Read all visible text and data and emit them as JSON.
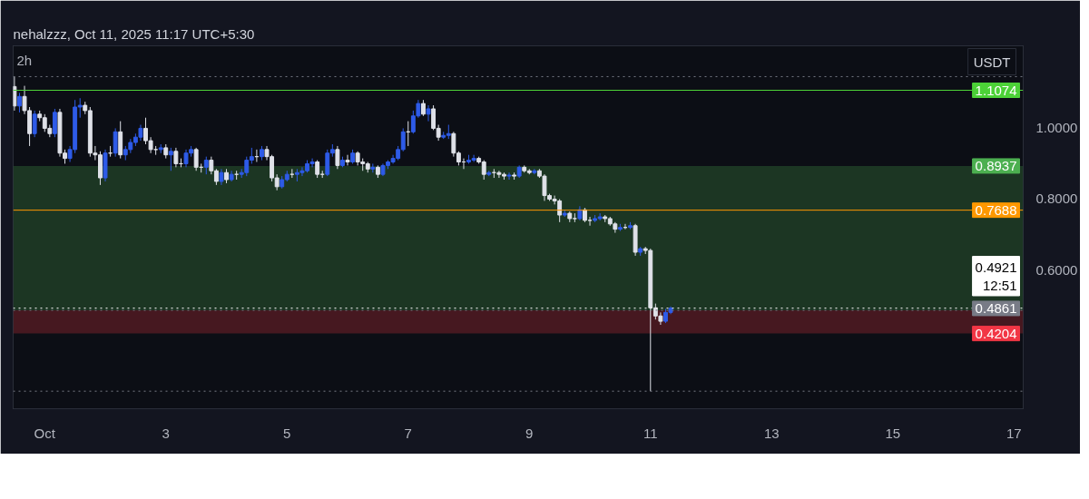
{
  "chart_data": {
    "type": "candlestick",
    "title": "nehalzzz, Oct 11, 2025 11:17 UTC+5:30",
    "subtitle": "2h",
    "ylabel": "USDT",
    "colors": [
      "#dfe1e8",
      "#2e5be8",
      "#dfe1e8",
      "#dfe1e8",
      "#2e5be8",
      "#dfe1e8",
      "#dfe1e8",
      "#dfe1e8",
      "#2e5be8",
      "#dfe1e8",
      "#dfe1e8",
      "#2e5be8",
      "#2e5be8",
      "#2e5be8",
      "#dfe1e8",
      "#dfe1e8",
      "#dfe1e8",
      "#dfe1e8",
      "#2e5be8",
      "#dfe1e8",
      "#2e5be8",
      "#dfe1e8",
      "#2e5be8",
      "#2e5be8",
      "#2e5be8",
      "#2e5be8",
      "#dfe1e8",
      "#dfe1e8",
      "#dfe1e8",
      "#2e5be8",
      "#dfe1e8",
      "#2e5be8",
      "#dfe1e8",
      "#dfe1e8",
      "#2e5be8",
      "#2e5be8",
      "#dfe1e8",
      "#dfe1e8",
      "#2e5be8",
      "#dfe1e8",
      "#dfe1e8",
      "#2e5be8",
      "#dfe1e8",
      "#2e5be8",
      "#dfe1e8",
      "#2e5be8",
      "#2e5be8",
      "#2e5be8",
      "#dfe1e8",
      "#2e5be8",
      "#dfe1e8",
      "#dfe1e8",
      "#dfe1e8",
      "#2e5be8",
      "#2e5be8",
      "#dfe1e8",
      "#2e5be8",
      "#2e5be8",
      "#2e5be8",
      "#2e5be8",
      "#dfe1e8",
      "#dfe1e8",
      "#2e5be8",
      "#2e5be8",
      "#dfe1e8",
      "#2e5be8",
      "#dfe1e8",
      "#2e5be8",
      "#dfe1e8",
      "#dfe1e8",
      "#dfe1e8",
      "#2e5be8",
      "#dfe1e8",
      "#2e5be8",
      "#2e5be8",
      "#2e5be8",
      "#2e5be8",
      "#2e5be8",
      "#dfe1e8",
      "#2e5be8",
      "#2e5be8",
      "#dfe1e8",
      "#2e5be8",
      "#dfe1e8",
      "#dfe1e8",
      "#2e5be8",
      "#2e5be8",
      "#dfe1e8",
      "#dfe1e8",
      "#dfe1e8",
      "#2e5be8",
      "#2e5be8",
      "#dfe1e8",
      "#dfe1e8",
      "#2e5be8",
      "#dfe1e8",
      "#dfe1e8",
      "#dfe1e8",
      "#2e5be8",
      "#dfe1e8",
      "#2e5be8",
      "#dfe1e8",
      "#dfe1e8",
      "#2e5be8",
      "#dfe1e8",
      "#dfe1e8",
      "#dfe1e8",
      "#dfe1e8",
      "#dfe1e8",
      "#2e5be8",
      "#dfe1e8",
      "#dfe1e8",
      "#2e5be8",
      "#dfe1e8",
      "#dfe1e8",
      "#2e5be8",
      "#2e5be8",
      "#dfe1e8",
      "#dfe1e8",
      "#dfe1e8",
      "#2e5be8",
      "#dfe1e8",
      "#2e5be8",
      "#dfe1e8",
      "#2e5be8",
      "#dfe1e8",
      "#dfe1e8",
      "#dfe1e8",
      "#dfe1e8",
      "#2e5be8",
      "#2e5be8"
    ],
    "x": [
      "2025-09-30T12:00",
      "2025-09-30T14:00",
      "2025-09-30T16:00",
      "2025-09-30T18:00",
      "2025-09-30T20:00",
      "2025-09-30T22:00",
      "2025-10-01T00:00",
      "2025-10-01T02:00",
      "2025-10-01T04:00",
      "2025-10-01T06:00",
      "2025-10-01T08:00",
      "2025-10-01T10:00",
      "2025-10-01T12:00",
      "2025-10-01T14:00",
      "2025-10-01T16:00",
      "2025-10-01T18:00",
      "2025-10-01T20:00",
      "2025-10-01T22:00",
      "2025-10-02T00:00",
      "2025-10-02T02:00",
      "2025-10-02T04:00",
      "2025-10-02T06:00",
      "2025-10-02T08:00",
      "2025-10-02T10:00",
      "2025-10-02T12:00",
      "2025-10-02T14:00",
      "2025-10-02T16:00",
      "2025-10-02T18:00",
      "2025-10-02T20:00",
      "2025-10-02T22:00",
      "2025-10-03T00:00",
      "2025-10-03T02:00",
      "2025-10-03T04:00",
      "2025-10-03T06:00",
      "2025-10-03T08:00",
      "2025-10-03T10:00",
      "2025-10-03T12:00",
      "2025-10-03T14:00",
      "2025-10-03T16:00",
      "2025-10-03T18:00",
      "2025-10-03T20:00",
      "2025-10-03T22:00",
      "2025-10-04T00:00",
      "2025-10-04T02:00",
      "2025-10-04T04:00",
      "2025-10-04T06:00",
      "2025-10-04T08:00",
      "2025-10-04T10:00",
      "2025-10-04T12:00",
      "2025-10-04T14:00",
      "2025-10-04T16:00",
      "2025-10-04T18:00",
      "2025-10-04T20:00",
      "2025-10-04T22:00",
      "2025-10-05T00:00",
      "2025-10-05T02:00",
      "2025-10-05T04:00",
      "2025-10-05T06:00",
      "2025-10-05T08:00",
      "2025-10-05T10:00",
      "2025-10-05T12:00",
      "2025-10-05T14:00",
      "2025-10-05T16:00",
      "2025-10-05T18:00",
      "2025-10-05T20:00",
      "2025-10-05T22:00",
      "2025-10-06T00:00",
      "2025-10-06T02:00",
      "2025-10-06T04:00",
      "2025-10-06T06:00",
      "2025-10-06T08:00",
      "2025-10-06T10:00",
      "2025-10-06T12:00",
      "2025-10-06T14:00",
      "2025-10-06T16:00",
      "2025-10-06T18:00",
      "2025-10-06T20:00",
      "2025-10-06T22:00",
      "2025-10-07T00:00",
      "2025-10-07T02:00",
      "2025-10-07T04:00",
      "2025-10-07T06:00",
      "2025-10-07T08:00",
      "2025-10-07T10:00",
      "2025-10-07T12:00",
      "2025-10-07T14:00",
      "2025-10-07T16:00",
      "2025-10-07T18:00",
      "2025-10-07T20:00",
      "2025-10-07T22:00",
      "2025-10-08T00:00",
      "2025-10-08T02:00",
      "2025-10-08T04:00",
      "2025-10-08T06:00",
      "2025-10-08T08:00",
      "2025-10-08T10:00",
      "2025-10-08T12:00",
      "2025-10-08T14:00",
      "2025-10-08T16:00",
      "2025-10-08T18:00",
      "2025-10-08T20:00",
      "2025-10-08T22:00",
      "2025-10-09T00:00",
      "2025-10-09T02:00",
      "2025-10-09T04:00",
      "2025-10-09T06:00",
      "2025-10-09T08:00",
      "2025-10-09T10:00",
      "2025-10-09T12:00",
      "2025-10-09T14:00",
      "2025-10-09T16:00",
      "2025-10-09T18:00",
      "2025-10-09T20:00",
      "2025-10-09T22:00",
      "2025-10-10T00:00",
      "2025-10-10T02:00",
      "2025-10-10T04:00",
      "2025-10-10T06:00",
      "2025-10-10T08:00",
      "2025-10-10T10:00",
      "2025-10-10T12:00",
      "2025-10-10T14:00",
      "2025-10-10T16:00",
      "2025-10-10T18:00",
      "2025-10-10T20:00",
      "2025-10-10T22:00",
      "2025-10-11T00:00",
      "2025-10-11T02:00",
      "2025-10-11T04:00",
      "2025-10-11T06:00",
      "2025-10-11T08:00"
    ],
    "ohlc": [
      [
        1.118,
        1.146,
        1.05,
        1.063
      ],
      [
        1.063,
        1.1,
        1.045,
        1.09
      ],
      [
        1.09,
        1.12,
        1.04,
        1.05
      ],
      [
        1.05,
        1.06,
        0.95,
        0.985
      ],
      [
        0.985,
        1.05,
        0.975,
        1.04
      ],
      [
        1.04,
        1.05,
        1.02,
        1.03
      ],
      [
        1.03,
        1.04,
        0.99,
        1.0
      ],
      [
        1.0,
        1.01,
        0.975,
        0.985
      ],
      [
        0.985,
        1.055,
        0.975,
        1.045
      ],
      [
        1.045,
        1.055,
        0.92,
        0.93
      ],
      [
        0.93,
        0.94,
        0.9,
        0.915
      ],
      [
        0.915,
        0.95,
        0.905,
        0.94
      ],
      [
        0.94,
        1.08,
        0.93,
        1.06
      ],
      [
        1.06,
        1.085,
        1.03,
        1.065
      ],
      [
        1.065,
        1.075,
        1.04,
        1.05
      ],
      [
        1.05,
        1.06,
        0.92,
        0.93
      ],
      [
        0.93,
        0.95,
        0.91,
        0.925
      ],
      [
        0.925,
        0.935,
        0.84,
        0.86
      ],
      [
        0.86,
        0.94,
        0.85,
        0.93
      ],
      [
        0.93,
        0.95,
        0.92,
        0.93
      ],
      [
        0.93,
        1.0,
        0.92,
        0.99
      ],
      [
        0.99,
        1.02,
        0.915,
        0.925
      ],
      [
        0.925,
        0.95,
        0.91,
        0.94
      ],
      [
        0.94,
        0.97,
        0.93,
        0.96
      ],
      [
        0.96,
        0.985,
        0.95,
        0.975
      ],
      [
        0.975,
        1.01,
        0.965,
        1.0
      ],
      [
        1.0,
        1.03,
        0.955,
        0.965
      ],
      [
        0.965,
        0.975,
        0.93,
        0.94
      ],
      [
        0.94,
        0.95,
        0.925,
        0.94
      ],
      [
        0.94,
        0.955,
        0.93,
        0.945
      ],
      [
        0.945,
        0.955,
        0.915,
        0.925
      ],
      [
        0.925,
        0.945,
        0.88,
        0.935
      ],
      [
        0.935,
        0.945,
        0.89,
        0.9
      ],
      [
        0.9,
        0.915,
        0.89,
        0.9
      ],
      [
        0.9,
        0.94,
        0.89,
        0.93
      ],
      [
        0.93,
        0.95,
        0.92,
        0.94
      ],
      [
        0.94,
        0.945,
        0.88,
        0.89
      ],
      [
        0.89,
        0.9,
        0.875,
        0.89
      ],
      [
        0.89,
        0.92,
        0.87,
        0.91
      ],
      [
        0.91,
        0.92,
        0.87,
        0.88
      ],
      [
        0.88,
        0.885,
        0.84,
        0.85
      ],
      [
        0.85,
        0.885,
        0.84,
        0.875
      ],
      [
        0.875,
        0.885,
        0.845,
        0.855
      ],
      [
        0.855,
        0.88,
        0.85,
        0.87
      ],
      [
        0.87,
        0.88,
        0.855,
        0.87
      ],
      [
        0.87,
        0.885,
        0.86,
        0.875
      ],
      [
        0.875,
        0.92,
        0.865,
        0.91
      ],
      [
        0.91,
        0.945,
        0.9,
        0.92
      ],
      [
        0.92,
        0.94,
        0.905,
        0.92
      ],
      [
        0.92,
        0.95,
        0.91,
        0.94
      ],
      [
        0.94,
        0.95,
        0.91,
        0.92
      ],
      [
        0.92,
        0.925,
        0.85,
        0.86
      ],
      [
        0.86,
        0.87,
        0.825,
        0.835
      ],
      [
        0.835,
        0.865,
        0.83,
        0.855
      ],
      [
        0.855,
        0.88,
        0.85,
        0.87
      ],
      [
        0.87,
        0.885,
        0.86,
        0.87
      ],
      [
        0.87,
        0.885,
        0.85,
        0.875
      ],
      [
        0.875,
        0.89,
        0.865,
        0.88
      ],
      [
        0.88,
        0.91,
        0.875,
        0.9
      ],
      [
        0.9,
        0.915,
        0.89,
        0.905
      ],
      [
        0.905,
        0.91,
        0.86,
        0.87
      ],
      [
        0.87,
        0.88,
        0.86,
        0.87
      ],
      [
        0.87,
        0.94,
        0.865,
        0.93
      ],
      [
        0.93,
        0.955,
        0.92,
        0.94
      ],
      [
        0.94,
        0.95,
        0.885,
        0.895
      ],
      [
        0.895,
        0.92,
        0.89,
        0.91
      ],
      [
        0.91,
        0.925,
        0.895,
        0.905
      ],
      [
        0.905,
        0.94,
        0.9,
        0.93
      ],
      [
        0.93,
        0.935,
        0.895,
        0.905
      ],
      [
        0.905,
        0.915,
        0.88,
        0.9
      ],
      [
        0.9,
        0.905,
        0.875,
        0.885
      ],
      [
        0.885,
        0.9,
        0.875,
        0.89
      ],
      [
        0.89,
        0.895,
        0.86,
        0.87
      ],
      [
        0.87,
        0.9,
        0.865,
        0.895
      ],
      [
        0.895,
        0.91,
        0.885,
        0.905
      ],
      [
        0.905,
        0.925,
        0.9,
        0.915
      ],
      [
        0.915,
        0.95,
        0.91,
        0.94
      ],
      [
        0.94,
        1.0,
        0.935,
        0.99
      ],
      [
        0.99,
        1.02,
        0.95,
        0.99
      ],
      [
        0.99,
        1.05,
        0.985,
        1.035
      ],
      [
        1.035,
        1.08,
        1.03,
        1.07
      ],
      [
        1.07,
        1.08,
        1.035,
        1.04
      ],
      [
        1.04,
        1.065,
        1.02,
        1.055
      ],
      [
        1.055,
        1.065,
        0.995,
        1.0
      ],
      [
        1.0,
        1.01,
        0.965,
        0.975
      ],
      [
        0.975,
        0.99,
        0.97,
        0.98
      ],
      [
        0.98,
        1.01,
        0.97,
        0.985
      ],
      [
        0.985,
        0.99,
        0.92,
        0.93
      ],
      [
        0.93,
        0.935,
        0.895,
        0.905
      ],
      [
        0.905,
        0.915,
        0.885,
        0.905
      ],
      [
        0.905,
        0.925,
        0.9,
        0.91
      ],
      [
        0.91,
        0.925,
        0.905,
        0.915
      ],
      [
        0.915,
        0.92,
        0.9,
        0.905
      ],
      [
        0.905,
        0.91,
        0.855,
        0.87
      ],
      [
        0.87,
        0.88,
        0.865,
        0.875
      ],
      [
        0.875,
        0.885,
        0.86,
        0.875
      ],
      [
        0.875,
        0.88,
        0.86,
        0.87
      ],
      [
        0.87,
        0.875,
        0.855,
        0.865
      ],
      [
        0.865,
        0.875,
        0.855,
        0.868
      ],
      [
        0.868,
        0.875,
        0.855,
        0.865
      ],
      [
        0.865,
        0.895,
        0.86,
        0.89
      ],
      [
        0.89,
        0.895,
        0.875,
        0.88
      ],
      [
        0.88,
        0.885,
        0.87,
        0.875
      ],
      [
        0.875,
        0.885,
        0.87,
        0.88
      ],
      [
        0.88,
        0.885,
        0.86,
        0.865
      ],
      [
        0.865,
        0.87,
        0.795,
        0.81
      ],
      [
        0.81,
        0.815,
        0.795,
        0.8
      ],
      [
        0.8,
        0.81,
        0.785,
        0.795
      ],
      [
        0.795,
        0.8,
        0.735,
        0.755
      ],
      [
        0.755,
        0.77,
        0.75,
        0.76
      ],
      [
        0.76,
        0.765,
        0.735,
        0.745
      ],
      [
        0.745,
        0.76,
        0.735,
        0.745
      ],
      [
        0.745,
        0.78,
        0.74,
        0.77
      ],
      [
        0.77,
        0.775,
        0.735,
        0.74
      ],
      [
        0.74,
        0.75,
        0.725,
        0.74
      ],
      [
        0.74,
        0.755,
        0.735,
        0.745
      ],
      [
        0.745,
        0.76,
        0.74,
        0.75
      ],
      [
        0.75,
        0.755,
        0.735,
        0.745
      ],
      [
        0.745,
        0.75,
        0.725,
        0.73
      ],
      [
        0.73,
        0.735,
        0.705,
        0.715
      ],
      [
        0.715,
        0.73,
        0.71,
        0.72
      ],
      [
        0.72,
        0.73,
        0.715,
        0.72
      ],
      [
        0.72,
        0.735,
        0.715,
        0.725
      ],
      [
        0.725,
        0.73,
        0.64,
        0.65
      ],
      [
        0.65,
        0.665,
        0.64,
        0.66
      ],
      [
        0.66,
        0.665,
        0.645,
        0.655
      ],
      [
        0.655,
        0.66,
        0.2575,
        0.493
      ],
      [
        0.493,
        0.505,
        0.46,
        0.47
      ],
      [
        0.47,
        0.48,
        0.445,
        0.455
      ],
      [
        0.455,
        0.49,
        0.45,
        0.48
      ],
      [
        0.48,
        0.497,
        0.475,
        0.4921
      ]
    ],
    "xlim": [
      "2025-09-30T11:30",
      "2025-10-17T03:40"
    ],
    "xticks": [
      {
        "value": "2025-10-01",
        "label": "Oct"
      },
      {
        "value": "2025-10-03",
        "label": "3"
      },
      {
        "value": "2025-10-05",
        "label": "5"
      },
      {
        "value": "2025-10-07",
        "label": "7"
      },
      {
        "value": "2025-10-09",
        "label": "9"
      },
      {
        "value": "2025-10-11",
        "label": "11"
      },
      {
        "value": "2025-10-13",
        "label": "13"
      },
      {
        "value": "2025-10-15",
        "label": "15"
      },
      {
        "value": "2025-10-17",
        "label": "17"
      }
    ],
    "ylim": [
      0.208,
      1.233
    ],
    "yticks": [
      {
        "value": 1.0,
        "label": "1.0000"
      },
      {
        "value": 0.8,
        "label": "0.8000"
      },
      {
        "value": 0.6,
        "label": "0.6000"
      }
    ],
    "bands": [
      {
        "axis": "y",
        "from": 0.4861,
        "to": 0.8937,
        "label": "0.8937",
        "color": "#4caf50"
      },
      {
        "axis": "y",
        "from": 0.4204,
        "to": 0.4861,
        "label": "0.4204",
        "color": "#f23645"
      }
    ],
    "ref_lines": [
      {
        "axis": "y",
        "value": 1.146,
        "label": null,
        "color": "#787b86",
        "line_style": "dotted"
      },
      {
        "axis": "y",
        "value": 1.1074,
        "label": "1.1074",
        "color": "#4cd137",
        "line_style": "solid"
      },
      {
        "axis": "y",
        "value": 0.7688,
        "label": "0.7688",
        "color": "#ff9800",
        "line_style": "solid"
      },
      {
        "axis": "y",
        "value": 0.4921,
        "label": "0.4921\n12:51",
        "color": "#ffffff",
        "line_style": "dotted"
      },
      {
        "axis": "y",
        "value": 0.4861,
        "label": "0.4861",
        "color": "#787b86",
        "line_style": "dotted"
      },
      {
        "axis": "y",
        "value": 0.2575,
        "label": null,
        "color": "#787b86",
        "line_style": "dotted"
      }
    ],
    "grid": false
  }
}
